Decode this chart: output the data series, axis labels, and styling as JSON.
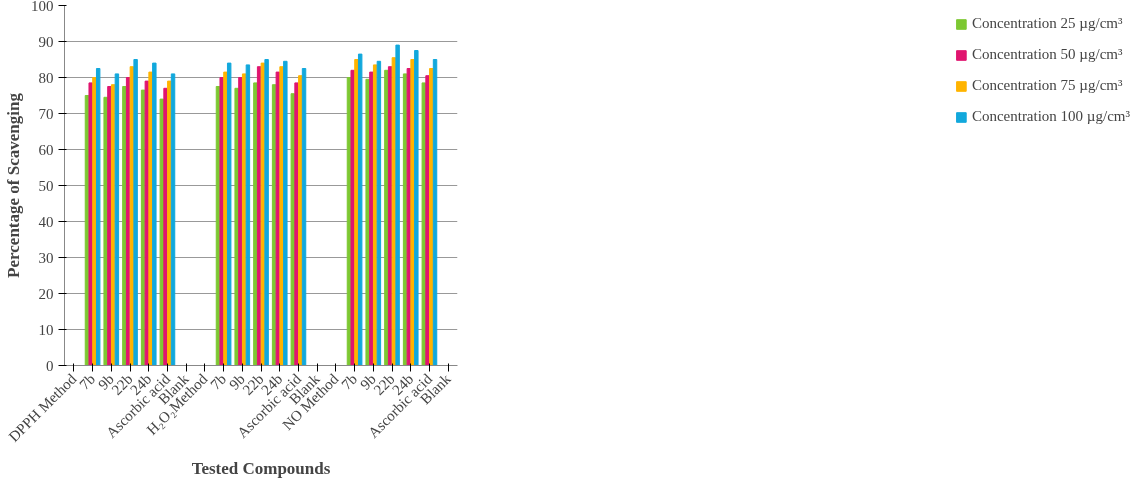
{
  "chart_data": {
    "type": "bar",
    "xlabel": "Tested Compounds",
    "ylabel": "Percentage of Scavenging",
    "categories": [
      "DPPH Method",
      "7b",
      "9b",
      "22b",
      "24b",
      "Ascorbic acid",
      "Blank",
      "H₂O₂Method",
      "7b",
      "9b",
      "22b",
      "24b",
      "Ascorbic acid",
      "Blank",
      "NO Method",
      "7b",
      "9b",
      "22b",
      "24b",
      "Ascorbic acid",
      "Blank"
    ],
    "series": [
      {
        "name": "Concentration 25 µg/cm³",
        "color": "#7dc832",
        "values": [
          null,
          75,
          74.5,
          77.5,
          76.5,
          74,
          null,
          null,
          77.5,
          77,
          78.5,
          78,
          75.5,
          null,
          null,
          80,
          79.5,
          82,
          81,
          78.5,
          null
        ]
      },
      {
        "name": "Concentration 50 µg/cm³",
        "color": "#e0156f",
        "values": [
          null,
          78.5,
          77.5,
          80,
          79,
          77,
          null,
          null,
          80,
          80,
          83,
          81.5,
          78.5,
          null,
          null,
          82,
          81.5,
          83,
          82.5,
          80.5,
          null
        ]
      },
      {
        "name": "Concentration 75 µg/cm³",
        "color": "#ffb400",
        "values": [
          null,
          80,
          78,
          83,
          81.5,
          79,
          null,
          null,
          81.5,
          81,
          84,
          83,
          80.5,
          null,
          null,
          85,
          83.5,
          85.5,
          85,
          82.5,
          null
        ]
      },
      {
        "name": "Concentration 100 µg/cm³",
        "color": "#12a8dc",
        "values": [
          null,
          82.5,
          81,
          85,
          84,
          81,
          null,
          null,
          84,
          83.5,
          85,
          84.5,
          82.5,
          null,
          null,
          86.5,
          84.5,
          89,
          87.5,
          85,
          null
        ]
      }
    ],
    "ylim": [
      0,
      100
    ],
    "yticks": [
      0,
      10,
      20,
      30,
      40,
      50,
      60,
      70,
      80,
      90,
      100
    ],
    "grid": "y",
    "legend": "right"
  }
}
